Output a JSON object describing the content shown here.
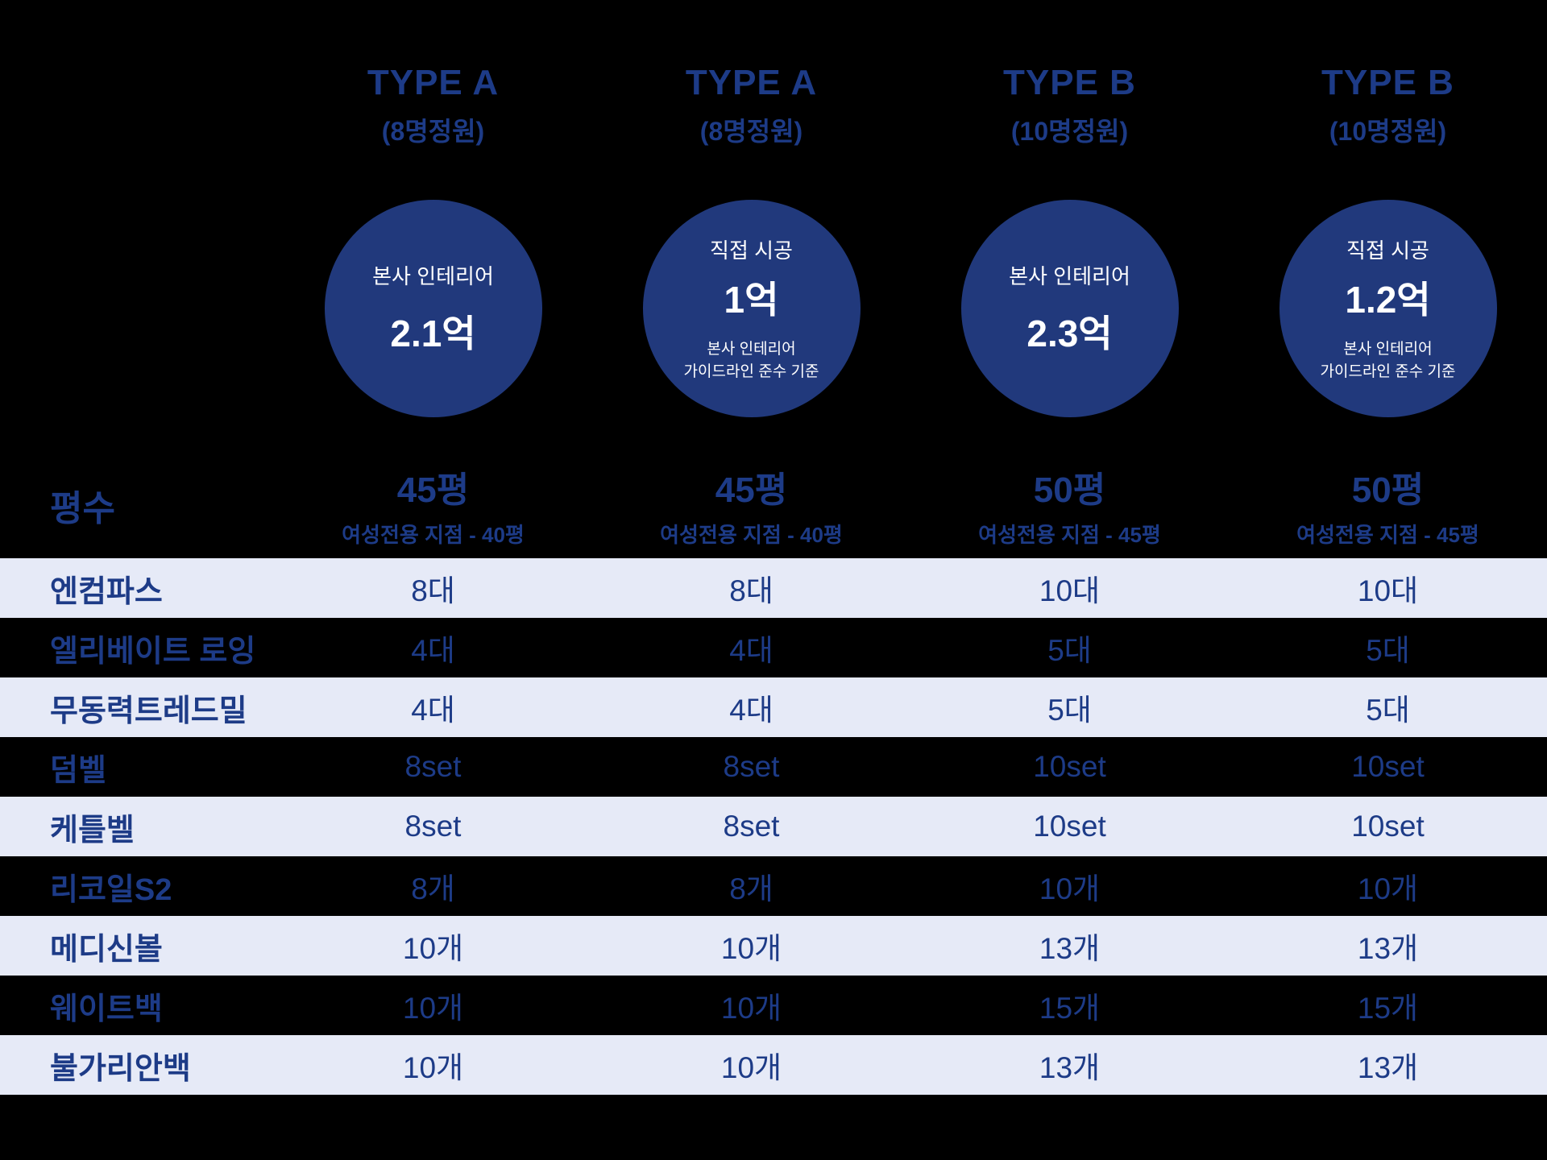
{
  "colors": {
    "background": "#000000",
    "navy": "#1d3b87",
    "circle_fill": "#21397c",
    "row_light": "#e6eaf7",
    "circle_text": "#ffffff"
  },
  "columns": [
    {
      "type_label": "TYPE A",
      "capacity": "(8명정원)",
      "circle": {
        "top_label": "본사 인테리어",
        "value": "2.1억",
        "note": ""
      }
    },
    {
      "type_label": "TYPE A",
      "capacity": "(8명정원)",
      "circle": {
        "top_label": "직접 시공",
        "value": "1억",
        "note": "본사 인테리어\n가이드라인 준수 기준"
      }
    },
    {
      "type_label": "TYPE B",
      "capacity": "(10명정원)",
      "circle": {
        "top_label": "본사 인테리어",
        "value": "2.3억",
        "note": ""
      }
    },
    {
      "type_label": "TYPE B",
      "capacity": "(10명정원)",
      "circle": {
        "top_label": "직접 시공",
        "value": "1.2억",
        "note": "본사 인테리어\n가이드라인 준수 기준"
      }
    }
  ],
  "area_row": {
    "label": "평수",
    "values": [
      {
        "main": "45평",
        "sub": "여성전용 지점 - 40평"
      },
      {
        "main": "45평",
        "sub": "여성전용 지점 - 40평"
      },
      {
        "main": "50평",
        "sub": "여성전용 지점 - 45평"
      },
      {
        "main": "50평",
        "sub": "여성전용 지점 - 45평"
      }
    ]
  },
  "equipment_rows": [
    {
      "label": "엔컴파스",
      "values": [
        "8대",
        "8대",
        "10대",
        "10대"
      ],
      "highlight": true
    },
    {
      "label": "엘리베이트 로잉",
      "values": [
        "4대",
        "4대",
        "5대",
        "5대"
      ],
      "highlight": false
    },
    {
      "label": "무동력트레드밀",
      "values": [
        "4대",
        "4대",
        "5대",
        "5대"
      ],
      "highlight": true
    },
    {
      "label": "덤벨",
      "values": [
        "8set",
        "8set",
        "10set",
        "10set"
      ],
      "highlight": false
    },
    {
      "label": "케틀벨",
      "values": [
        "8set",
        "8set",
        "10set",
        "10set"
      ],
      "highlight": true
    },
    {
      "label": "리코일S2",
      "values": [
        "8개",
        "8개",
        "10개",
        "10개"
      ],
      "highlight": false
    },
    {
      "label": "메디신볼",
      "values": [
        "10개",
        "10개",
        "13개",
        "13개"
      ],
      "highlight": true
    },
    {
      "label": "웨이트백",
      "values": [
        "10개",
        "10개",
        "15개",
        "15개"
      ],
      "highlight": false
    },
    {
      "label": "불가리안백",
      "values": [
        "10개",
        "10개",
        "13개",
        "13개"
      ],
      "highlight": true
    }
  ],
  "chart_data": {
    "type": "table",
    "title": "",
    "column_headers": [
      {
        "type": "TYPE A",
        "capacity": "(8명정원)",
        "pricing": "본사 인테리어 2.1억"
      },
      {
        "type": "TYPE A",
        "capacity": "(8명정원)",
        "pricing": "직접 시공 1억 (본사 인테리어 가이드라인 준수 기준)"
      },
      {
        "type": "TYPE B",
        "capacity": "(10명정원)",
        "pricing": "본사 인테리어 2.3억"
      },
      {
        "type": "TYPE B",
        "capacity": "(10명정원)",
        "pricing": "직접 시공 1.2억 (본사 인테리어 가이드라인 준수 기준)"
      }
    ],
    "rows": [
      {
        "label": "평수",
        "values": [
          "45평 (여성전용 지점 - 40평)",
          "45평 (여성전용 지점 - 40평)",
          "50평 (여성전용 지점 - 45평)",
          "50평 (여성전용 지점 - 45평)"
        ]
      },
      {
        "label": "엔컴파스",
        "values": [
          "8대",
          "8대",
          "10대",
          "10대"
        ]
      },
      {
        "label": "엘리베이트 로잉",
        "values": [
          "4대",
          "4대",
          "5대",
          "5대"
        ]
      },
      {
        "label": "무동력트레드밀",
        "values": [
          "4대",
          "4대",
          "5대",
          "5대"
        ]
      },
      {
        "label": "덤벨",
        "values": [
          "8set",
          "8set",
          "10set",
          "10set"
        ]
      },
      {
        "label": "케틀벨",
        "values": [
          "8set",
          "8set",
          "10set",
          "10set"
        ]
      },
      {
        "label": "리코일S2",
        "values": [
          "8개",
          "8개",
          "10개",
          "10개"
        ]
      },
      {
        "label": "메디신볼",
        "values": [
          "10개",
          "10개",
          "13개",
          "13개"
        ]
      },
      {
        "label": "웨이트백",
        "values": [
          "10개",
          "10개",
          "15개",
          "15개"
        ]
      },
      {
        "label": "불가리안백",
        "values": [
          "10개",
          "10개",
          "13개",
          "13개"
        ]
      }
    ]
  }
}
